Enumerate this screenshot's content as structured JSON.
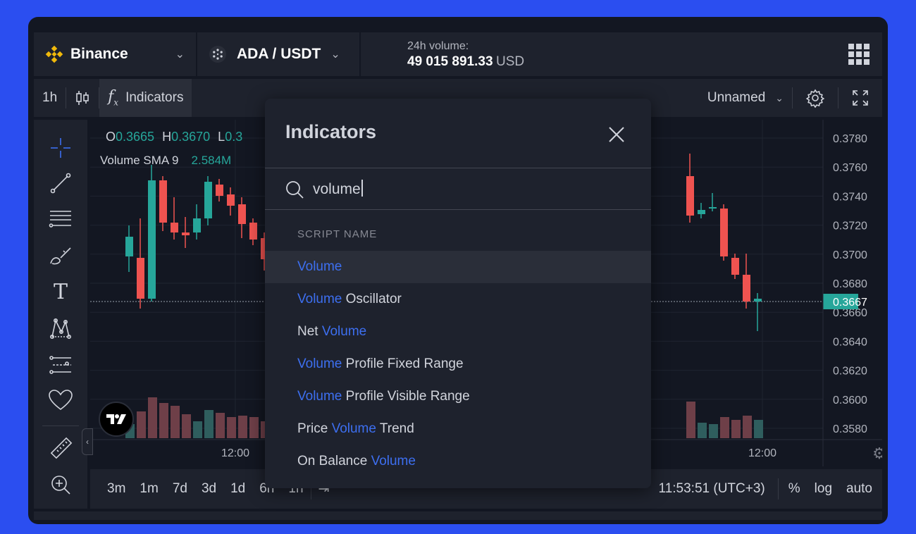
{
  "topbar": {
    "exchange": "Binance",
    "pair": "ADA / USDT",
    "volume_label": "24h volume:",
    "volume_value": "49 015 891.33",
    "volume_unit": "USD"
  },
  "toolbar": {
    "interval": "1h",
    "indicators": "Indicators",
    "layout_name": "Unnamed"
  },
  "legend": {
    "o_label": "O",
    "o_value": "0.3665",
    "h_label": "H",
    "h_value": "0.3670",
    "l_label": "L",
    "l_value": "0.3",
    "volume_sma": "Volume SMA 9",
    "volume_sma_value": "2.584M"
  },
  "price_axis": {
    "ticks": [
      "0.3780",
      "0.3760",
      "0.3740",
      "0.3720",
      "0.3700",
      "0.3680",
      "0.3660",
      "0.3640",
      "0.3620",
      "0.3600",
      "0.3580"
    ],
    "current_price": "0.3667",
    "colors": {
      "up": "#26a69a",
      "down": "#ef5350",
      "accent": "#3d6ff0"
    }
  },
  "time_axis": {
    "labels": [
      "12:00",
      "12:00"
    ]
  },
  "bottombar": {
    "ranges": [
      "3m",
      "1m",
      "7d",
      "3d",
      "1d",
      "6h",
      "1h"
    ],
    "clock": "11:53:51 (UTC+3)",
    "percent": "%",
    "log": "log",
    "auto": "auto"
  },
  "modal": {
    "title": "Indicators",
    "search_value": "volume",
    "section": "SCRIPT NAME",
    "items": [
      {
        "pre": "",
        "hl": "Volume",
        "post": ""
      },
      {
        "pre": "",
        "hl": "Volume",
        "post": " Oscillator"
      },
      {
        "pre": "Net ",
        "hl": "Volume",
        "post": ""
      },
      {
        "pre": "",
        "hl": "Volume",
        "post": " Profile Fixed Range"
      },
      {
        "pre": "",
        "hl": "Volume",
        "post": " Profile Visible Range"
      },
      {
        "pre": "Price ",
        "hl": "Volume",
        "post": " Trend"
      },
      {
        "pre": "On Balance ",
        "hl": "Volume",
        "post": ""
      }
    ]
  }
}
